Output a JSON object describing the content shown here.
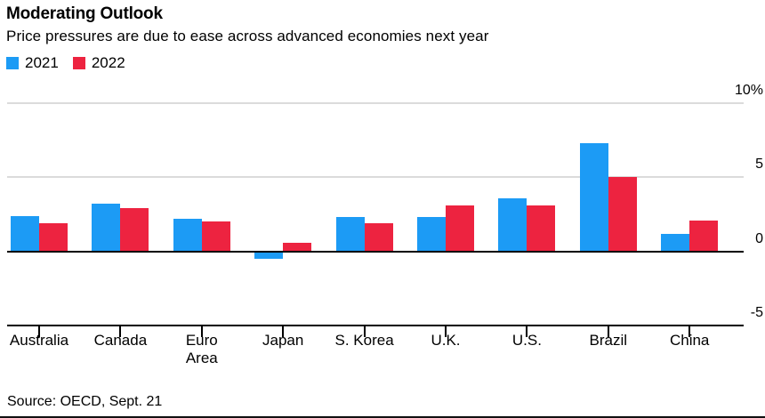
{
  "header": {
    "title": "Moderating Outlook",
    "subtitle": "Price pressures are due to ease across advanced economies next year"
  },
  "legend": {
    "items": [
      {
        "label": "2021",
        "color": "#1C9BF5"
      },
      {
        "label": "2022",
        "color": "#ED2340"
      }
    ]
  },
  "source": "Source: OECD, Sept. 21",
  "chart_data": {
    "type": "bar",
    "title": "Moderating Outlook",
    "subtitle": "Price pressures are due to ease across advanced economies next year",
    "categories": [
      "Australia",
      "Canada",
      "Euro\nArea",
      "Japan",
      "S. Korea",
      "U.K.",
      "U.S.",
      "Brazil",
      "China"
    ],
    "series": [
      {
        "name": "2021",
        "color": "#1C9BF5",
        "values": [
          2.4,
          3.2,
          2.2,
          -0.5,
          2.3,
          2.3,
          3.6,
          7.3,
          1.2
        ]
      },
      {
        "name": "2022",
        "color": "#ED2340",
        "values": [
          1.9,
          2.9,
          2.0,
          0.6,
          1.9,
          3.1,
          3.1,
          5.0,
          2.1
        ]
      }
    ],
    "ylim": [
      -5,
      10
    ],
    "yticks": [
      {
        "value": 10,
        "label": "10%"
      },
      {
        "value": 5,
        "label": "5"
      },
      {
        "value": 0,
        "label": "0"
      },
      {
        "value": -5,
        "label": "-5"
      }
    ],
    "grid": "horizontal gray gridlines every 5 units; zero line emphasized black; bottom axis black with category ticks",
    "legend_position": "top-left",
    "axis_label_side": "right",
    "gridline_color": "#DBDBDB",
    "source": "Source: OECD, Sept. 21"
  }
}
